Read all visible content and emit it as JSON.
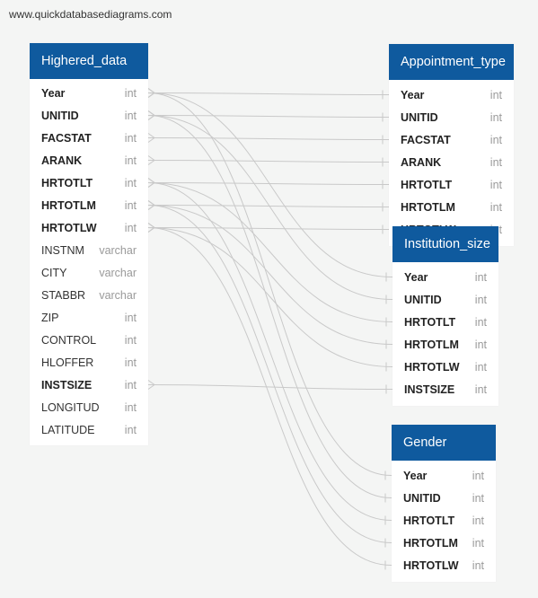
{
  "watermark": "www.quickdatabasediagrams.com",
  "tables": [
    {
      "title": "Highered_data",
      "fields": [
        {
          "name": "Year",
          "type": "int",
          "key": true
        },
        {
          "name": "UNITID",
          "type": "int",
          "key": true
        },
        {
          "name": "FACSTAT",
          "type": "int",
          "key": true
        },
        {
          "name": "ARANK",
          "type": "int",
          "key": true
        },
        {
          "name": "HRTOTLT",
          "type": "int",
          "key": true
        },
        {
          "name": "HRTOTLM",
          "type": "int",
          "key": true
        },
        {
          "name": "HRTOTLW",
          "type": "int",
          "key": true
        },
        {
          "name": "INSTNM",
          "type": "varchar",
          "key": false
        },
        {
          "name": "CITY",
          "type": "varchar",
          "key": false
        },
        {
          "name": "STABBR",
          "type": "varchar",
          "key": false
        },
        {
          "name": "ZIP",
          "type": "int",
          "key": false
        },
        {
          "name": "CONTROL",
          "type": "int",
          "key": false
        },
        {
          "name": "HLOFFER",
          "type": "int",
          "key": false
        },
        {
          "name": "INSTSIZE",
          "type": "int",
          "key": true
        },
        {
          "name": "LONGITUD",
          "type": "int",
          "key": false
        },
        {
          "name": "LATITUDE",
          "type": "int",
          "key": false
        }
      ]
    },
    {
      "title": "Appointment_type",
      "fields": [
        {
          "name": "Year",
          "type": "int",
          "key": true
        },
        {
          "name": "UNITID",
          "type": "int",
          "key": true
        },
        {
          "name": "FACSTAT",
          "type": "int",
          "key": true
        },
        {
          "name": "ARANK",
          "type": "int",
          "key": true
        },
        {
          "name": "HRTOTLT",
          "type": "int",
          "key": true
        },
        {
          "name": "HRTOTLM",
          "type": "int",
          "key": true
        },
        {
          "name": "HRTOTLW",
          "type": "int",
          "key": true
        }
      ]
    },
    {
      "title": "Institution_size",
      "fields": [
        {
          "name": "Year",
          "type": "int",
          "key": true
        },
        {
          "name": "UNITID",
          "type": "int",
          "key": true
        },
        {
          "name": "HRTOTLT",
          "type": "int",
          "key": true
        },
        {
          "name": "HRTOTLM",
          "type": "int",
          "key": true
        },
        {
          "name": "HRTOTLW",
          "type": "int",
          "key": true
        },
        {
          "name": "INSTSIZE",
          "type": "int",
          "key": true
        }
      ]
    },
    {
      "title": "Gender",
      "fields": [
        {
          "name": "Year",
          "type": "int",
          "key": true
        },
        {
          "name": "UNITID",
          "type": "int",
          "key": true
        },
        {
          "name": "HRTOTLT",
          "type": "int",
          "key": true
        },
        {
          "name": "HRTOTLM",
          "type": "int",
          "key": true
        },
        {
          "name": "HRTOTLW",
          "type": "int",
          "key": true
        }
      ]
    }
  ],
  "relationships": [
    {
      "from": "Highered_data.Year",
      "to": "Appointment_type.Year"
    },
    {
      "from": "Highered_data.UNITID",
      "to": "Appointment_type.UNITID"
    },
    {
      "from": "Highered_data.FACSTAT",
      "to": "Appointment_type.FACSTAT"
    },
    {
      "from": "Highered_data.ARANK",
      "to": "Appointment_type.ARANK"
    },
    {
      "from": "Highered_data.HRTOTLT",
      "to": "Appointment_type.HRTOTLT"
    },
    {
      "from": "Highered_data.HRTOTLM",
      "to": "Appointment_type.HRTOTLM"
    },
    {
      "from": "Highered_data.HRTOTLW",
      "to": "Appointment_type.HRTOTLW"
    },
    {
      "from": "Highered_data.Year",
      "to": "Institution_size.Year"
    },
    {
      "from": "Highered_data.UNITID",
      "to": "Institution_size.UNITID"
    },
    {
      "from": "Highered_data.HRTOTLT",
      "to": "Institution_size.HRTOTLT"
    },
    {
      "from": "Highered_data.HRTOTLM",
      "to": "Institution_size.HRTOTLM"
    },
    {
      "from": "Highered_data.HRTOTLW",
      "to": "Institution_size.HRTOTLW"
    },
    {
      "from": "Highered_data.INSTSIZE",
      "to": "Institution_size.INSTSIZE"
    },
    {
      "from": "Highered_data.Year",
      "to": "Gender.Year"
    },
    {
      "from": "Highered_data.UNITID",
      "to": "Gender.UNITID"
    },
    {
      "from": "Highered_data.HRTOTLT",
      "to": "Gender.HRTOTLT"
    },
    {
      "from": "Highered_data.HRTOTLM",
      "to": "Gender.HRTOTLM"
    },
    {
      "from": "Highered_data.HRTOTLW",
      "to": "Gender.HRTOTLW"
    }
  ],
  "colors": {
    "header": "#0f5a9e",
    "link": "#c9c9c9",
    "background": "#f4f5f4"
  }
}
